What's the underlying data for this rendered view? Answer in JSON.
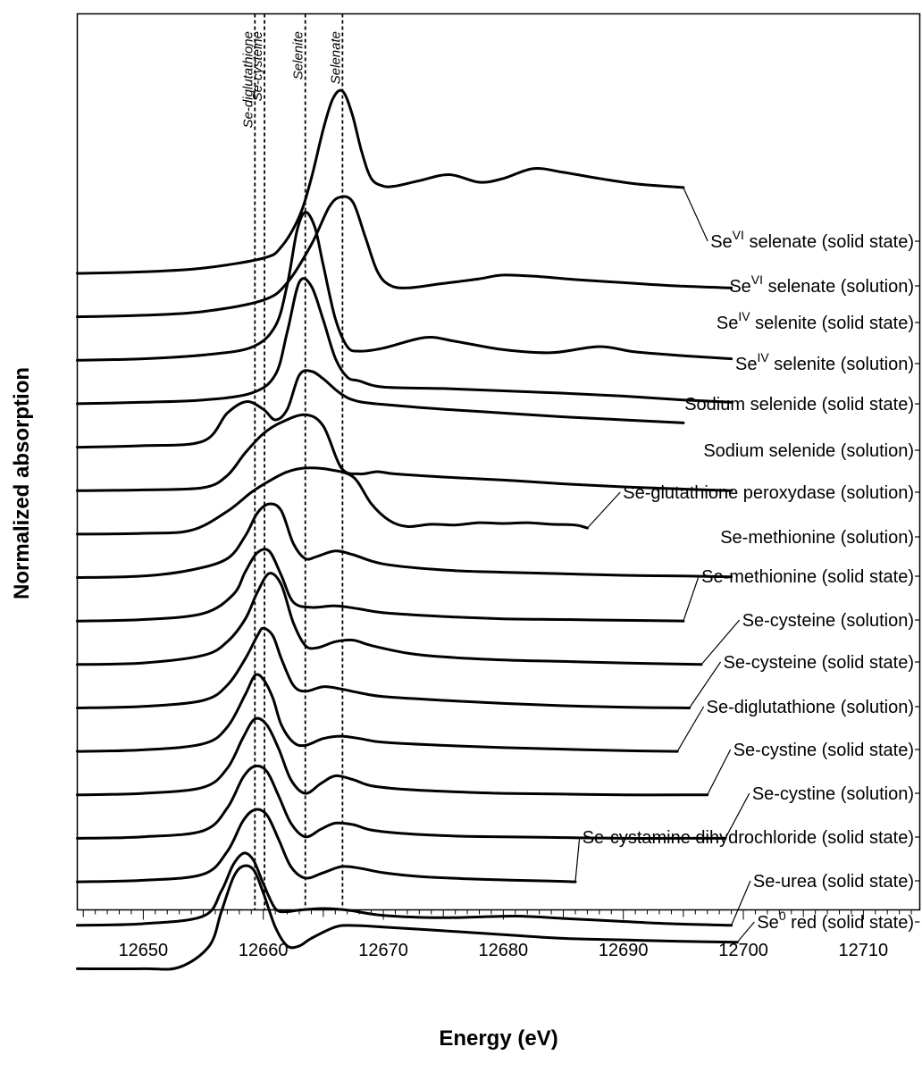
{
  "chart_data": {
    "type": "line",
    "xlabel": "Energy (eV)",
    "ylabel": "Normalized absorption",
    "xlim": [
      12644.5,
      12714.7
    ],
    "xticks": [
      12650,
      12660,
      12670,
      12680,
      12690,
      12700,
      12710
    ],
    "y_scale": "stacked (vertically offset spectra, no y tick labels)",
    "grid": false,
    "reference_lines": [
      {
        "label": "Se-diglutathione",
        "x": 12659.3
      },
      {
        "label": "Se-cysteine",
        "x": 12660.1
      },
      {
        "label": "Selenite",
        "x": 12663.5
      },
      {
        "label": "Selenate",
        "x": 12666.6
      }
    ],
    "series": [
      {
        "label": {
          "base": "Se",
          "sup": "VI",
          "rest": " selenate (solid state)"
        },
        "x": [
          12644.5,
          12650,
          12655,
          12660,
          12661.5,
          12663,
          12664,
          12665,
          12665.8,
          12666.6,
          12667.4,
          12668.2,
          12669,
          12670,
          12671,
          12673,
          12675.5,
          12678,
          12680,
          12682.5,
          12685,
          12688,
          12691,
          12695
        ],
        "y": [
          0.0,
          0.02,
          0.07,
          0.2,
          0.35,
          0.75,
          1.25,
          1.9,
          2.3,
          2.4,
          2.1,
          1.6,
          1.25,
          1.15,
          1.15,
          1.22,
          1.3,
          1.2,
          1.25,
          1.38,
          1.33,
          1.25,
          1.18,
          1.13
        ]
      },
      {
        "label": {
          "base": "Se",
          "sup": "VI",
          "rest": " selenate (solution)"
        },
        "x": [
          12644.5,
          12650,
          12655,
          12660,
          12662,
          12664,
          12665.5,
          12666.5,
          12667.5,
          12668.5,
          12669.5,
          12670.5,
          12672,
          12675,
          12678,
          12680,
          12683,
          12686,
          12690,
          12694,
          12699
        ],
        "y": [
          0.0,
          0.02,
          0.07,
          0.22,
          0.45,
          0.95,
          1.45,
          1.58,
          1.5,
          1.05,
          0.6,
          0.42,
          0.38,
          0.44,
          0.5,
          0.55,
          0.53,
          0.49,
          0.45,
          0.41,
          0.38
        ]
      },
      {
        "label": {
          "base": "Se",
          "sup": "IV",
          "rest": " selenite (solid state)"
        },
        "x": [
          12644.5,
          12650,
          12655,
          12659,
          12661,
          12662,
          12662.8,
          12663.5,
          12664.3,
          12665,
          12666,
          12667,
          12668,
          12670,
          12673.5,
          12676,
          12680,
          12684,
          12688,
          12691,
          12695,
          12699
        ],
        "y": [
          0.0,
          0.02,
          0.07,
          0.17,
          0.45,
          1.0,
          1.7,
          1.95,
          1.75,
          1.25,
          0.55,
          0.18,
          0.12,
          0.16,
          0.3,
          0.25,
          0.14,
          0.1,
          0.18,
          0.11,
          0.06,
          0.02
        ]
      },
      {
        "label": {
          "base": "Se",
          "sup": "IV",
          "rest": " selenite (solution)"
        },
        "x": [
          12644.5,
          12650,
          12655,
          12659,
          12661,
          12662,
          12663,
          12664,
          12665,
          12666,
          12667,
          12668,
          12670,
          12675,
          12680,
          12685,
          12690,
          12695,
          12699
        ],
        "y": [
          0.0,
          0.02,
          0.05,
          0.14,
          0.38,
          0.95,
          1.6,
          1.55,
          1.1,
          0.6,
          0.35,
          0.3,
          0.22,
          0.2,
          0.17,
          0.14,
          0.1,
          0.05,
          0.02
        ]
      },
      {
        "label": {
          "base": "Sodium selenide (solid state)"
        },
        "x": [
          12644.5,
          12650,
          12655,
          12657,
          12658.6,
          12660,
          12661,
          12662,
          12663,
          12664,
          12665,
          12666.5,
          12668,
          12671,
          12675,
          12680,
          12685,
          12690,
          12695
        ],
        "y": [
          0.0,
          0.02,
          0.08,
          0.45,
          0.6,
          0.5,
          0.36,
          0.5,
          0.95,
          1.0,
          0.9,
          0.7,
          0.6,
          0.55,
          0.5,
          0.45,
          0.4,
          0.36,
          0.32
        ]
      },
      {
        "label": {
          "base": "Sodium selenide (solution)"
        },
        "x": [
          12644.5,
          12650,
          12655,
          12657,
          12658.5,
          12660,
          12661.5,
          12663.5,
          12665,
          12666.5,
          12668,
          12669.5,
          12671,
          12675,
          12680,
          12685,
          12690,
          12695,
          12699
        ],
        "y": [
          0.0,
          0.01,
          0.04,
          0.2,
          0.5,
          0.75,
          0.9,
          1.0,
          0.85,
          0.3,
          0.22,
          0.25,
          0.22,
          0.18,
          0.14,
          0.09,
          0.05,
          0.02,
          0.0
        ]
      },
      {
        "label": {
          "base": "Se-glutathione peroxydase (solution)"
        },
        "x": [
          12644.5,
          12650,
          12654,
          12657,
          12659,
          12660.5,
          12662,
          12663.5,
          12665.5,
          12667.5,
          12669,
          12670.5,
          12672,
          12674,
          12676,
          12678,
          12680,
          12682,
          12684,
          12686,
          12687
        ],
        "y": [
          0.0,
          0.01,
          0.05,
          0.3,
          0.55,
          0.7,
          0.82,
          0.87,
          0.85,
          0.75,
          0.4,
          0.18,
          0.1,
          0.13,
          0.12,
          0.15,
          0.14,
          0.15,
          0.13,
          0.12,
          0.08
        ]
      },
      {
        "label": {
          "base": "Se-methionine (solution)"
        },
        "x": [
          12644.5,
          12650,
          12654,
          12657,
          12658.5,
          12659.5,
          12660.5,
          12661.5,
          12662.5,
          12663.5,
          12664.5,
          12666,
          12667.5,
          12670,
          12675,
          12680,
          12685,
          12690,
          12695,
          12699
        ],
        "y": [
          0.0,
          0.02,
          0.1,
          0.25,
          0.55,
          0.85,
          0.97,
          0.88,
          0.45,
          0.25,
          0.28,
          0.35,
          0.3,
          0.18,
          0.1,
          0.07,
          0.05,
          0.03,
          0.02,
          0.01
        ]
      },
      {
        "label": {
          "base": "Se-methionine (solid state)"
        },
        "x": [
          12644.5,
          12650,
          12655,
          12657.5,
          12658.5,
          12659.5,
          12660.5,
          12661.5,
          12662.5,
          12664,
          12666,
          12668,
          12670,
          12675,
          12680,
          12685,
          12690,
          12695
        ],
        "y": [
          0.0,
          0.02,
          0.1,
          0.35,
          0.65,
          0.9,
          0.92,
          0.6,
          0.25,
          0.18,
          0.2,
          0.16,
          0.11,
          0.06,
          0.03,
          0.02,
          0.01,
          0.0
        ]
      },
      {
        "label": {
          "base": "Se-cysteine (solution)"
        },
        "x": [
          12644.5,
          12650,
          12655,
          12657,
          12658.5,
          12659.5,
          12660.5,
          12661.5,
          12662.5,
          12663.5,
          12664.5,
          12666,
          12667.5,
          12669,
          12672,
          12675,
          12680,
          12685,
          12690,
          12696.5
        ],
        "y": [
          0.0,
          0.02,
          0.12,
          0.3,
          0.6,
          0.95,
          1.2,
          1.05,
          0.55,
          0.25,
          0.22,
          0.3,
          0.32,
          0.25,
          0.15,
          0.1,
          0.06,
          0.04,
          0.02,
          0.0
        ]
      },
      {
        "label": {
          "base": "Se-cysteine (solid state)"
        },
        "x": [
          12644.5,
          12650,
          12655,
          12657,
          12658.5,
          12659.5,
          12660,
          12660.8,
          12661.5,
          12662.5,
          12663.5,
          12665,
          12666.5,
          12668,
          12670,
          12675,
          12680,
          12685,
          12690,
          12695.5
        ],
        "y": [
          0.0,
          0.02,
          0.1,
          0.3,
          0.65,
          0.95,
          1.05,
          0.95,
          0.65,
          0.3,
          0.22,
          0.28,
          0.25,
          0.2,
          0.15,
          0.1,
          0.06,
          0.03,
          0.01,
          0.0
        ]
      },
      {
        "label": {
          "base": "Se-diglutathione (solution)"
        },
        "x": [
          12644.5,
          12650,
          12655,
          12657,
          12658.5,
          12659.3,
          12660,
          12660.8,
          12661.5,
          12662.5,
          12663.5,
          12665,
          12666.5,
          12668,
          12670,
          12675,
          12680,
          12685,
          12690,
          12694.5
        ],
        "y": [
          0.0,
          0.02,
          0.1,
          0.32,
          0.75,
          1.0,
          0.95,
          0.7,
          0.35,
          0.12,
          0.08,
          0.17,
          0.2,
          0.17,
          0.12,
          0.08,
          0.05,
          0.03,
          0.01,
          0.0
        ]
      },
      {
        "label": {
          "base": "Se-cystine (solid state)"
        },
        "x": [
          12644.5,
          12650,
          12655,
          12657,
          12658.3,
          12659.3,
          12660.3,
          12661.3,
          12662.3,
          12663.5,
          12664.8,
          12666,
          12667.5,
          12669,
          12672,
          12676,
          12680,
          12685,
          12690,
          12695,
          12697
        ],
        "y": [
          0.0,
          0.02,
          0.1,
          0.35,
          0.75,
          1.0,
          0.92,
          0.6,
          0.2,
          0.02,
          0.15,
          0.25,
          0.2,
          0.12,
          0.07,
          0.04,
          0.02,
          0.01,
          0.0,
          0.0,
          0.0
        ]
      },
      {
        "label": {
          "base": "Se-cystine (solution)"
        },
        "x": [
          12644.5,
          12650,
          12655,
          12657,
          12658.3,
          12659.3,
          12660.3,
          12661.3,
          12662.3,
          12663.5,
          12664.8,
          12666,
          12667.5,
          12669,
          12672,
          12676,
          12680,
          12685,
          12690,
          12695,
          12698.5
        ],
        "y": [
          0.0,
          0.02,
          0.1,
          0.4,
          0.8,
          0.95,
          0.88,
          0.55,
          0.2,
          0.02,
          0.12,
          0.2,
          0.18,
          0.11,
          0.06,
          0.03,
          0.02,
          0.01,
          0.0,
          0.0,
          0.0
        ]
      },
      {
        "label": {
          "base": "Se-cystamine dihydrochloride (solid state)"
        },
        "x": [
          12644.5,
          12650,
          12655,
          12657,
          12658.3,
          12659.3,
          12660.3,
          12661.3,
          12662.3,
          12663.5,
          12665,
          12666.5,
          12668,
          12670,
          12673,
          12677,
          12681,
          12684,
          12686
        ],
        "y": [
          0.0,
          0.02,
          0.1,
          0.4,
          0.8,
          0.95,
          0.88,
          0.55,
          0.2,
          0.05,
          0.12,
          0.2,
          0.18,
          0.12,
          0.07,
          0.04,
          0.02,
          0.01,
          0.0
        ]
      },
      {
        "label": {
          "base": "Se-urea (solid state)"
        },
        "x": [
          12644.5,
          12650,
          12655,
          12656.5,
          12657.5,
          12658.4,
          12659.2,
          12660,
          12661,
          12662,
          12663,
          12665,
          12667,
          12670,
          12675,
          12681,
          12685,
          12690,
          12694,
          12699
        ],
        "y": [
          0.0,
          0.02,
          0.12,
          0.45,
          0.8,
          0.95,
          0.85,
          0.55,
          0.22,
          0.18,
          0.2,
          0.22,
          0.2,
          0.13,
          0.1,
          0.12,
          0.09,
          0.05,
          0.02,
          0.0
        ]
      },
      {
        "label": {
          "base": "Se",
          "sup": "0",
          "rest": " red (solid state)"
        },
        "x": [
          12644.5,
          12650,
          12653,
          12655.5,
          12656.5,
          12657.5,
          12658.3,
          12659.2,
          12660,
          12661,
          12662,
          12663,
          12664,
          12666,
          12667.5,
          12670,
          12675,
          12680,
          12685,
          12690,
          12695,
          12699.5
        ],
        "y": [
          0.0,
          0.0,
          0.02,
          0.3,
          0.75,
          1.2,
          1.35,
          1.3,
          1.0,
          0.55,
          0.3,
          0.3,
          0.4,
          0.55,
          0.57,
          0.55,
          0.5,
          0.45,
          0.4,
          0.38,
          0.36,
          0.35
        ]
      }
    ]
  }
}
